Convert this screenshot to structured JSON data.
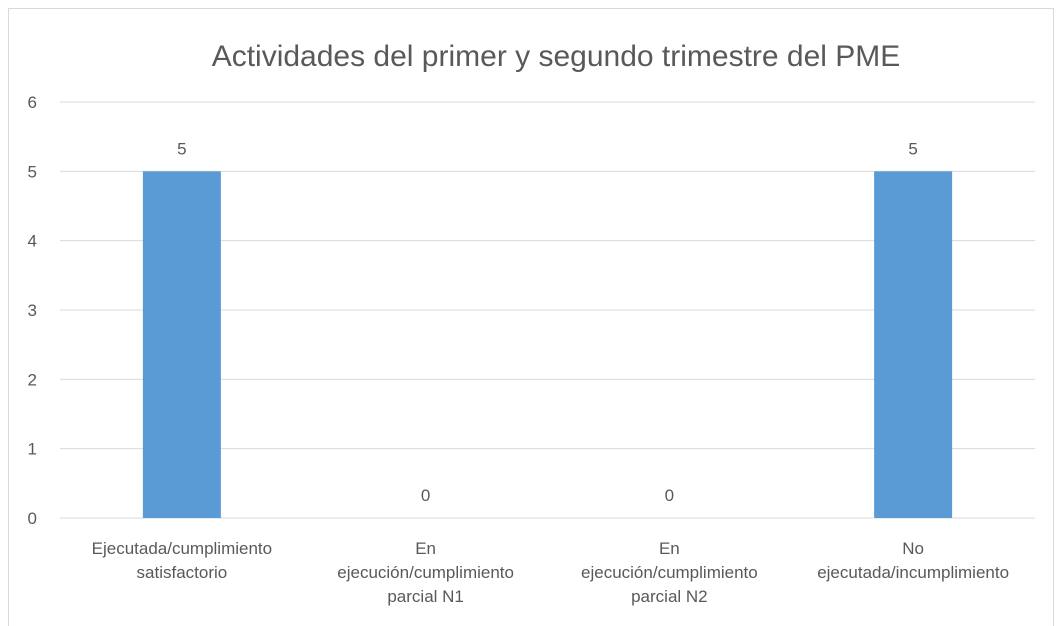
{
  "chart_data": {
    "type": "bar",
    "title": "Actividades del primer y segundo trimestre del PME",
    "categories": [
      [
        "Ejecutada/cumplimiento",
        "satisfactorio"
      ],
      [
        "En",
        "ejecución/cumplimiento",
        "parcial N1"
      ],
      [
        "En",
        "ejecución/cumplimiento",
        "parcial N2"
      ],
      [
        "No",
        "ejecutada/incumplimiento"
      ]
    ],
    "values": [
      5,
      0,
      0,
      5
    ],
    "data_labels": [
      "5",
      "0",
      "0",
      "5"
    ],
    "ylim": [
      0,
      6
    ],
    "yticks": [
      "0",
      "1",
      "2",
      "3",
      "4",
      "5",
      "6"
    ],
    "xlabel": "",
    "ylabel": "",
    "grid": true,
    "legend": "none",
    "bar_color": "#5b9bd5",
    "grid_color": "#d9d9d9",
    "text_color": "#595959"
  }
}
